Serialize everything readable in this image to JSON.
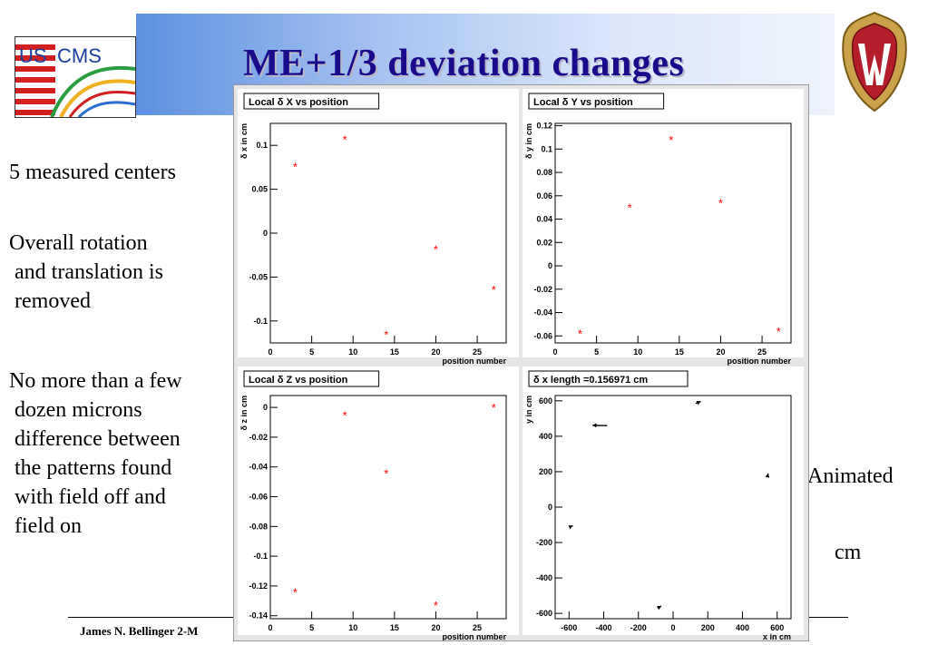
{
  "slide": {
    "title": "ME+1/3 deviation changes",
    "text_blocks": [
      "5 measured centers",
      "Overall rotation\n and translation is\n removed",
      "No more than a few\n dozen microns\n difference between\n the patterns found\n with field off and\n field on"
    ],
    "right_text_animated": "Animated",
    "right_text_cm": "cm",
    "footer": "James N. Bellinger 2-M"
  },
  "logos": {
    "left": "us-cms-logo",
    "right": "wisconsin-w-crest",
    "left_text_us": "US",
    "left_text_cms": "CMS"
  },
  "colors": {
    "marker": "#ff0000",
    "title": "#1a0a8c",
    "banner": "#5d8fe0"
  },
  "chart_data": [
    {
      "type": "scatter",
      "title": "Local δ X vs position",
      "xlabel": "position number",
      "ylabel": "δ x in cm",
      "xlim": [
        0,
        28.5
      ],
      "ylim": [
        -0.125,
        0.125
      ],
      "xticks": [
        "0",
        "5",
        "10",
        "15",
        "20",
        "25"
      ],
      "yticks": [
        "0.1",
        "0.05",
        "0",
        "-0.05",
        "-0.1"
      ],
      "points": [
        [
          3,
          0.076
        ],
        [
          9,
          0.107
        ],
        [
          14,
          -0.115
        ],
        [
          20,
          -0.018
        ],
        [
          27,
          -0.064
        ]
      ]
    },
    {
      "type": "scatter",
      "title": "Local δ Y vs position",
      "xlabel": "position number",
      "ylabel": "δ y in cm",
      "xlim": [
        0,
        28.5
      ],
      "ylim": [
        -0.066,
        0.122
      ],
      "xticks": [
        "0",
        "5",
        "10",
        "15",
        "20",
        "25"
      ],
      "yticks": [
        "0.12",
        "0.1",
        "0.08",
        "0.06",
        "0.04",
        "0.02",
        "0",
        "-0.02",
        "-0.04",
        "-0.06"
      ],
      "points": [
        [
          3,
          -0.058
        ],
        [
          9,
          0.05
        ],
        [
          14,
          0.108
        ],
        [
          20,
          0.054
        ],
        [
          27,
          -0.056
        ]
      ]
    },
    {
      "type": "scatter",
      "title": "Local δ Z vs position",
      "xlabel": "position number",
      "ylabel": "δ z in cm",
      "xlim": [
        0,
        28.5
      ],
      "ylim": [
        -0.142,
        0.008
      ],
      "xticks": [
        "0",
        "5",
        "10",
        "15",
        "20",
        "25"
      ],
      "yticks": [
        "0",
        "-0.02",
        "-0.04",
        "-0.06",
        "-0.08",
        "-0.1",
        "-0.12",
        "-0.14"
      ],
      "points": [
        [
          3,
          -0.124
        ],
        [
          9,
          -0.005
        ],
        [
          14,
          -0.044
        ],
        [
          20,
          -0.133
        ],
        [
          27,
          0.0
        ]
      ]
    },
    {
      "type": "vector",
      "title": "δ x   length =0.156971 cm",
      "xlabel": "x in cm",
      "ylabel": "y in cm",
      "xlim": [
        -680,
        680
      ],
      "ylim": [
        -630,
        630
      ],
      "xticks": [
        "-600",
        "-400",
        "-200",
        "0",
        "200",
        "400",
        "600"
      ],
      "yticks": [
        "600",
        "400",
        "200",
        "0",
        "-200",
        "-400",
        "-600"
      ],
      "arrows": [
        {
          "x": 130,
          "y": 585,
          "dx": 30,
          "dy": 12
        },
        {
          "x": -380,
          "y": 460,
          "dx": -85,
          "dy": 2
        },
        {
          "x": 545,
          "y": 175,
          "dx": 3,
          "dy": 15
        },
        {
          "x": -590,
          "y": -110,
          "dx": 12,
          "dy": 5
        },
        {
          "x": -90,
          "y": -570,
          "dx": 22,
          "dy": 12
        }
      ]
    }
  ]
}
